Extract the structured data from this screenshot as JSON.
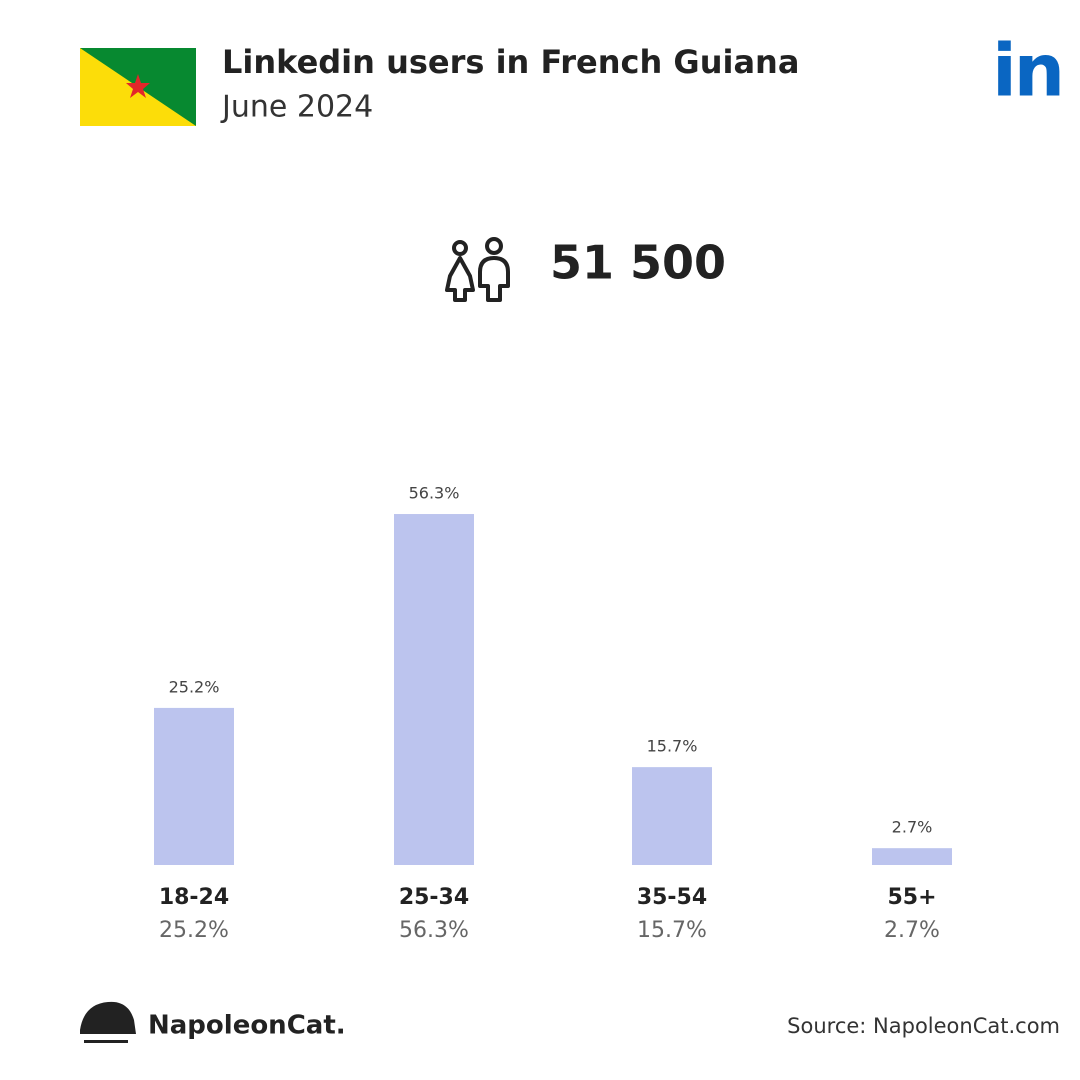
{
  "header": {
    "title": "Linkedin users in French Guiana",
    "subtitle": "June 2024",
    "logo": "in"
  },
  "total_users": "51 500",
  "chart_data": {
    "type": "bar",
    "categories": [
      "18-24",
      "25-34",
      "35-54",
      "55+"
    ],
    "values": [
      25.2,
      56.3,
      15.7,
      2.7
    ],
    "value_labels": [
      "25.2%",
      "56.3%",
      "15.7%",
      "2.7%"
    ],
    "color": "#bcc4ee"
  },
  "footer": {
    "brand": "NapoleonCat.",
    "source": "Source: NapoleonCat.com"
  }
}
